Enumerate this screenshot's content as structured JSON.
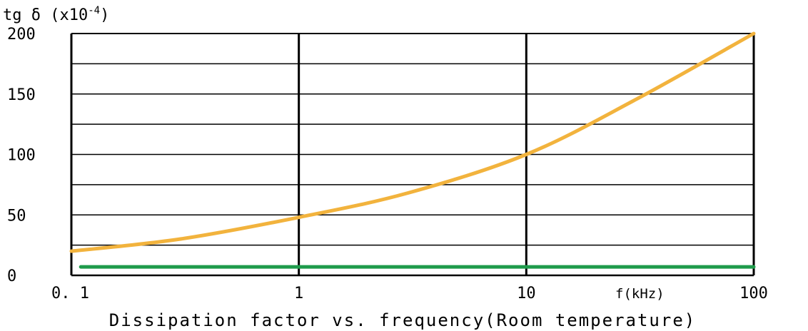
{
  "chart_data": {
    "type": "line",
    "title": "Dissipation factor vs. frequency(Room temperature)",
    "ylabel": {
      "main": "tg δ (x10",
      "exponent": "-4",
      "close": ")"
    },
    "xlabel": "f(kHz)",
    "x_scale": "log",
    "xlim": [
      0.1,
      100
    ],
    "ylim": [
      0,
      200
    ],
    "x_ticks": [
      {
        "value": 0.1,
        "label": "0. 1"
      },
      {
        "value": 1,
        "label": "1"
      },
      {
        "value": 10,
        "label": "10"
      },
      {
        "value": 100,
        "label": "100"
      }
    ],
    "y_ticks": [
      {
        "value": 0,
        "label": "0"
      },
      {
        "value": 50,
        "label": "50"
      },
      {
        "value": 100,
        "label": "100"
      },
      {
        "value": 150,
        "label": "150"
      },
      {
        "value": 200,
        "label": "200"
      }
    ],
    "grid": true,
    "series": [
      {
        "color": "#f2b33d",
        "x": [
          0.1,
          0.3,
          1,
          3,
          10,
          30,
          100
        ],
        "y": [
          20,
          30,
          48,
          68,
          100,
          145,
          200
        ]
      },
      {
        "color": "#1e9b4b",
        "x": [
          0.11,
          100
        ],
        "y": [
          7,
          7
        ]
      }
    ]
  }
}
